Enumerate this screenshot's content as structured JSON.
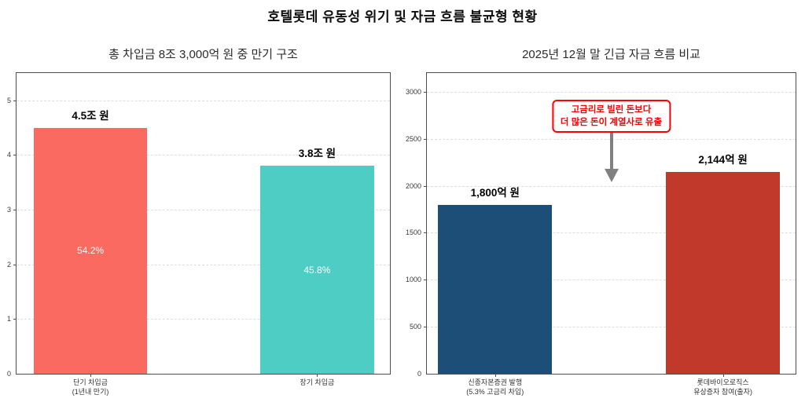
{
  "figure_title": "호텔롯데 유동성 위기 및 자금 흐름 불균형 현황",
  "chart_data": [
    {
      "type": "bar",
      "title": "총 차입금 8조 3,000억 원 중 만기 구조",
      "categories": [
        "단기 차입금\n(1년내 만기)",
        "장기 차입금"
      ],
      "values": [
        4.5,
        3.8
      ],
      "bar_labels": [
        "4.5조 원",
        "3.8조 원"
      ],
      "inner_labels": [
        "54.2%",
        "45.8%"
      ],
      "colors": [
        "#FB6A60",
        "#4ECDC4"
      ],
      "xlabel": "",
      "ylabel": "",
      "ylim": [
        0,
        5.5
      ],
      "yticks": [
        0,
        1,
        2,
        3,
        4,
        5
      ],
      "grid": "horizontal-dashed",
      "legend": "none"
    },
    {
      "type": "bar",
      "title": "2025년 12월 말 긴급 자금 흐름 비교",
      "categories": [
        "신종자본증권 발행\n(5.3% 고금리 차입)",
        "롯데바이오로직스\n유상증자 참여(출자)"
      ],
      "values": [
        1800,
        2144
      ],
      "bar_labels": [
        "1,800억 원",
        "2,144억 원"
      ],
      "inner_labels": [
        "",
        ""
      ],
      "colors": [
        "#1D4E77",
        "#C0392B"
      ],
      "xlabel": "",
      "ylabel": "",
      "ylim": [
        0,
        3200
      ],
      "yticks": [
        0,
        500,
        1000,
        1500,
        2000,
        2500,
        3000
      ],
      "grid": "horizontal-dashed",
      "legend": "none",
      "annotation": {
        "text_lines": [
          "고금리로 빌린 돈보다",
          "더 많은 돈이 계열사로 유출"
        ],
        "text_color": "#ff0000",
        "border_color": "#ff0000",
        "arrow_color": "#808080"
      }
    }
  ]
}
